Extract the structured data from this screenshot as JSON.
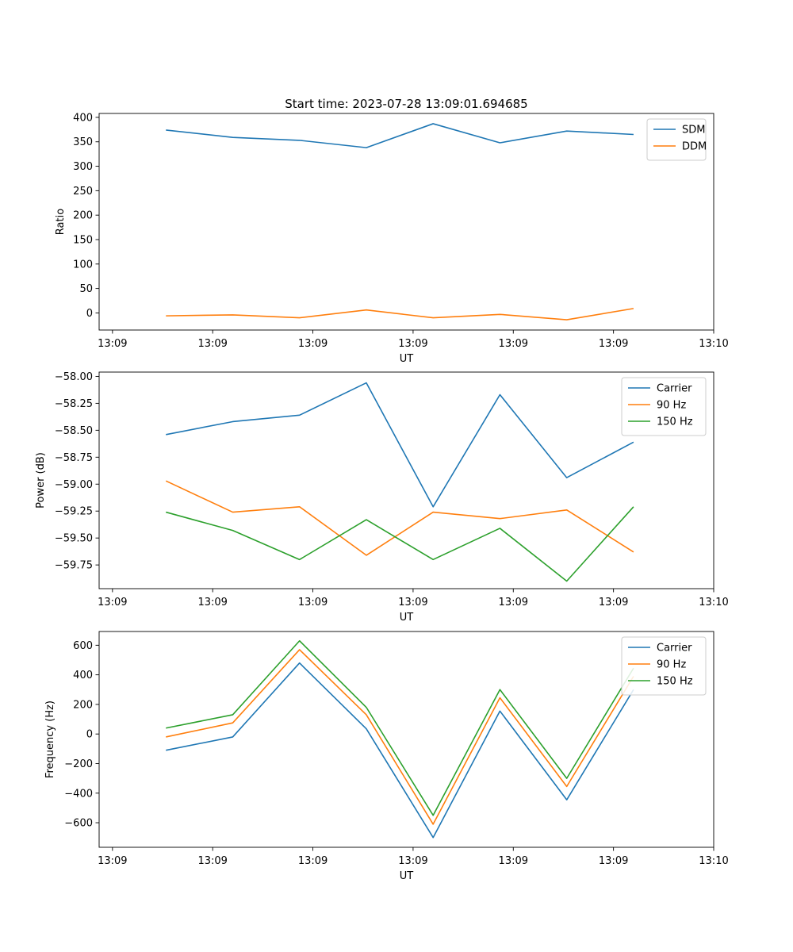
{
  "figure_title": "Start time: 2023-07-28 13:09:01.694685",
  "colors": {
    "blue": "#1f77b4",
    "orange": "#ff7f0e",
    "green": "#2ca02c"
  },
  "chart_data": [
    {
      "type": "line",
      "title": "Start time: 2023-07-28 13:09:01.694685",
      "xlabel": "UT",
      "ylabel": "Ratio",
      "xlim": [
        -0.6,
        8.6
      ],
      "ylim": [
        -35,
        408
      ],
      "x": [
        0.4,
        1.4,
        2.4,
        3.4,
        4.4,
        5.4,
        6.4,
        7.4
      ],
      "xticks": [
        -0.4,
        1.1,
        2.6,
        4.1,
        5.6,
        7.1,
        8.6
      ],
      "xtick_labels": [
        "13:09",
        "13:09",
        "13:09",
        "13:09",
        "13:09",
        "13:09",
        "13:10"
      ],
      "yticks": [
        0,
        50,
        100,
        150,
        200,
        250,
        300,
        350,
        400
      ],
      "ytick_labels": [
        "0",
        "50",
        "100",
        "150",
        "200",
        "250",
        "300",
        "350",
        "400"
      ],
      "legend_position": "top-right",
      "series": [
        {
          "name": "SDM",
          "color": "#1f77b4",
          "values": [
            374,
            359,
            353,
            338,
            387,
            348,
            372,
            365
          ]
        },
        {
          "name": "DDM",
          "color": "#ff7f0e",
          "values": [
            -6,
            -4,
            -10,
            6,
            -10,
            -3,
            -14,
            9
          ]
        }
      ]
    },
    {
      "type": "line",
      "title": "",
      "xlabel": "UT",
      "ylabel": "Power (dB)",
      "xlim": [
        -0.6,
        8.6
      ],
      "ylim": [
        -59.97,
        -57.96
      ],
      "x": [
        0.4,
        1.4,
        2.4,
        3.4,
        4.4,
        5.4,
        6.4,
        7.4
      ],
      "xticks": [
        -0.4,
        1.1,
        2.6,
        4.1,
        5.6,
        7.1,
        8.6
      ],
      "xtick_labels": [
        "13:09",
        "13:09",
        "13:09",
        "13:09",
        "13:09",
        "13:09",
        "13:10"
      ],
      "yticks": [
        -58.0,
        -58.25,
        -58.5,
        -58.75,
        -59.0,
        -59.25,
        -59.5,
        -59.75
      ],
      "ytick_labels": [
        "−58.00",
        "−58.25",
        "−58.50",
        "−58.75",
        "−59.00",
        "−59.25",
        "−59.50",
        "−59.75"
      ],
      "legend_position": "top-right",
      "series": [
        {
          "name": "Carrier",
          "color": "#1f77b4",
          "values": [
            -58.54,
            -58.42,
            -58.36,
            -58.06,
            -59.21,
            -58.17,
            -58.94,
            -58.61
          ]
        },
        {
          "name": "90 Hz",
          "color": "#ff7f0e",
          "values": [
            -58.97,
            -59.26,
            -59.21,
            -59.66,
            -59.26,
            -59.32,
            -59.24,
            -59.63
          ]
        },
        {
          "name": "150 Hz",
          "color": "#2ca02c",
          "values": [
            -59.26,
            -59.43,
            -59.7,
            -59.33,
            -59.7,
            -59.41,
            -59.9,
            -59.21
          ]
        }
      ]
    },
    {
      "type": "line",
      "title": "",
      "xlabel": "UT",
      "ylabel": "Frequency (Hz)",
      "xlim": [
        -0.6,
        8.6
      ],
      "ylim": [
        -766,
        693
      ],
      "x": [
        0.4,
        1.4,
        2.4,
        3.4,
        4.4,
        5.4,
        6.4,
        7.4
      ],
      "xticks": [
        -0.4,
        1.1,
        2.6,
        4.1,
        5.6,
        7.1,
        8.6
      ],
      "xtick_labels": [
        "13:09",
        "13:09",
        "13:09",
        "13:09",
        "13:09",
        "13:09",
        "13:10"
      ],
      "yticks": [
        -600,
        -400,
        -200,
        0,
        200,
        400,
        600
      ],
      "ytick_labels": [
        "−600",
        "−400",
        "−200",
        "0",
        "200",
        "400",
        "600"
      ],
      "legend_position": "top-right",
      "series": [
        {
          "name": "Carrier",
          "color": "#1f77b4",
          "values": [
            -110,
            -20,
            480,
            35,
            -700,
            155,
            -445,
            300
          ]
        },
        {
          "name": "90 Hz",
          "color": "#ff7f0e",
          "values": [
            -20,
            75,
            570,
            130,
            -610,
            245,
            -355,
            390
          ]
        },
        {
          "name": "150 Hz",
          "color": "#2ca02c",
          "values": [
            40,
            130,
            630,
            180,
            -550,
            300,
            -300,
            445
          ]
        }
      ]
    }
  ]
}
